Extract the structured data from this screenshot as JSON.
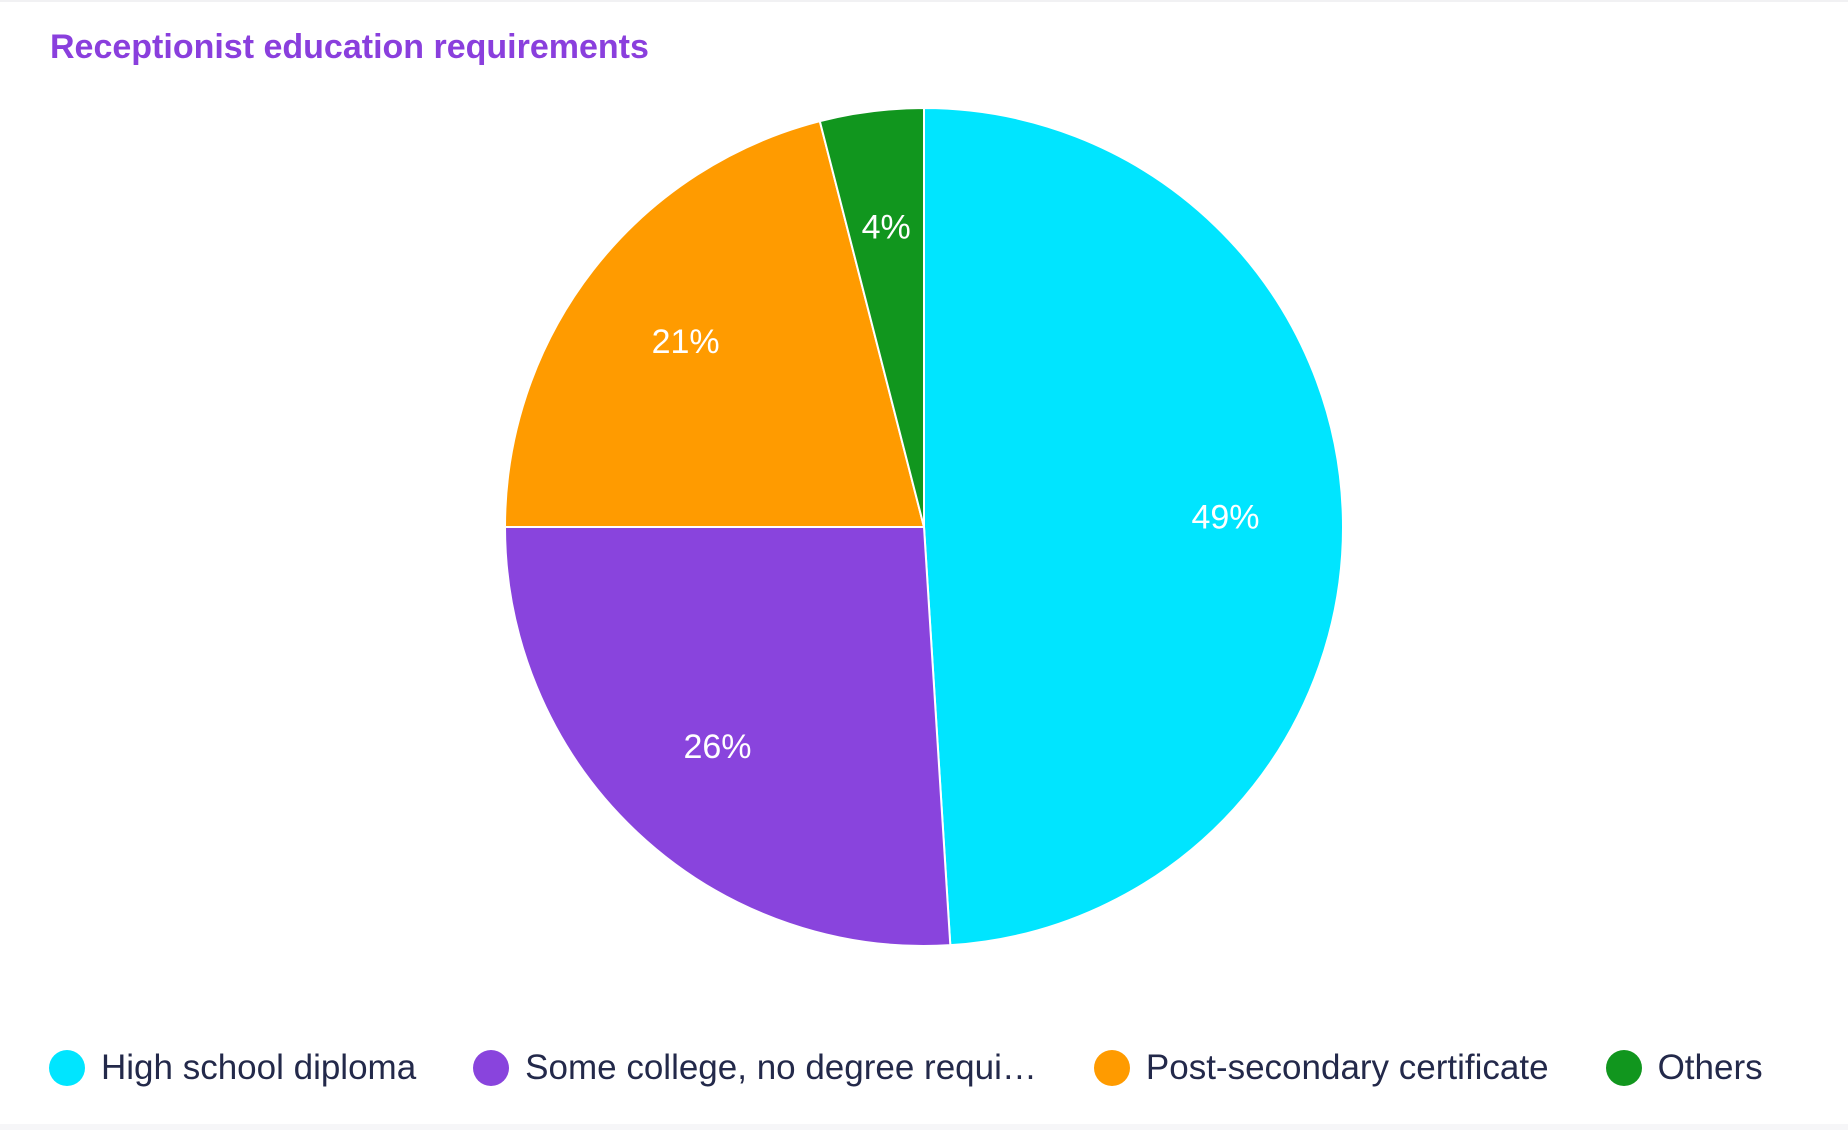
{
  "chart_data": {
    "type": "pie",
    "title": "Receptionist education requirements",
    "categories": [
      "High school diploma",
      "Some college, no degree requi…",
      "Post-secondary certificate",
      "Others"
    ],
    "values": [
      49,
      26,
      21,
      4
    ],
    "value_labels": [
      "49%",
      "26%",
      "21%",
      "4%"
    ],
    "colors": [
      "#00e5ff",
      "#8944dd",
      "#ff9b00",
      "#11961e"
    ],
    "start_angle_deg": 0,
    "direction": "clockwise",
    "legend_position": "bottom-left"
  }
}
